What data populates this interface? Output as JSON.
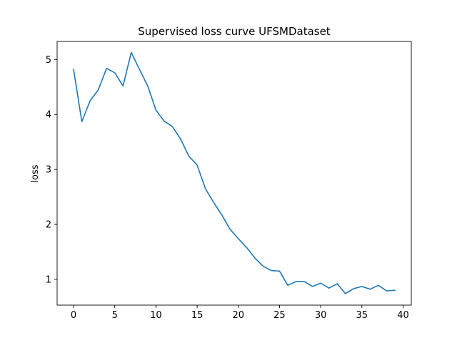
{
  "chart_data": {
    "type": "line",
    "title": "Supervised loss curve UFSMDataset",
    "xlabel": "",
    "ylabel": "loss",
    "xlim": [
      -2,
      41
    ],
    "ylim": [
      0.53,
      5.33
    ],
    "xticks": [
      0,
      5,
      10,
      15,
      20,
      25,
      30,
      35,
      40
    ],
    "yticks": [
      1,
      2,
      3,
      4,
      5
    ],
    "grid": false,
    "legend": "none",
    "series": [
      {
        "color": "#1f77b4",
        "x": [
          0,
          1,
          2,
          3,
          4,
          5,
          6,
          7,
          8,
          9,
          10,
          11,
          12,
          13,
          14,
          15,
          16,
          17,
          18,
          19,
          20,
          21,
          22,
          23,
          24,
          25,
          26,
          27,
          28,
          29,
          30,
          31,
          32,
          33,
          34,
          35,
          36,
          37,
          38,
          39
        ],
        "values": [
          4.82,
          3.87,
          4.25,
          4.45,
          4.84,
          4.76,
          4.52,
          5.13,
          4.82,
          4.52,
          4.08,
          3.88,
          3.78,
          3.55,
          3.24,
          3.08,
          2.65,
          2.4,
          2.17,
          1.91,
          1.74,
          1.58,
          1.39,
          1.24,
          1.16,
          1.15,
          0.89,
          0.96,
          0.96,
          0.87,
          0.93,
          0.84,
          0.92,
          0.74,
          0.83,
          0.87,
          0.82,
          0.89,
          0.79,
          0.8
        ]
      }
    ]
  }
}
